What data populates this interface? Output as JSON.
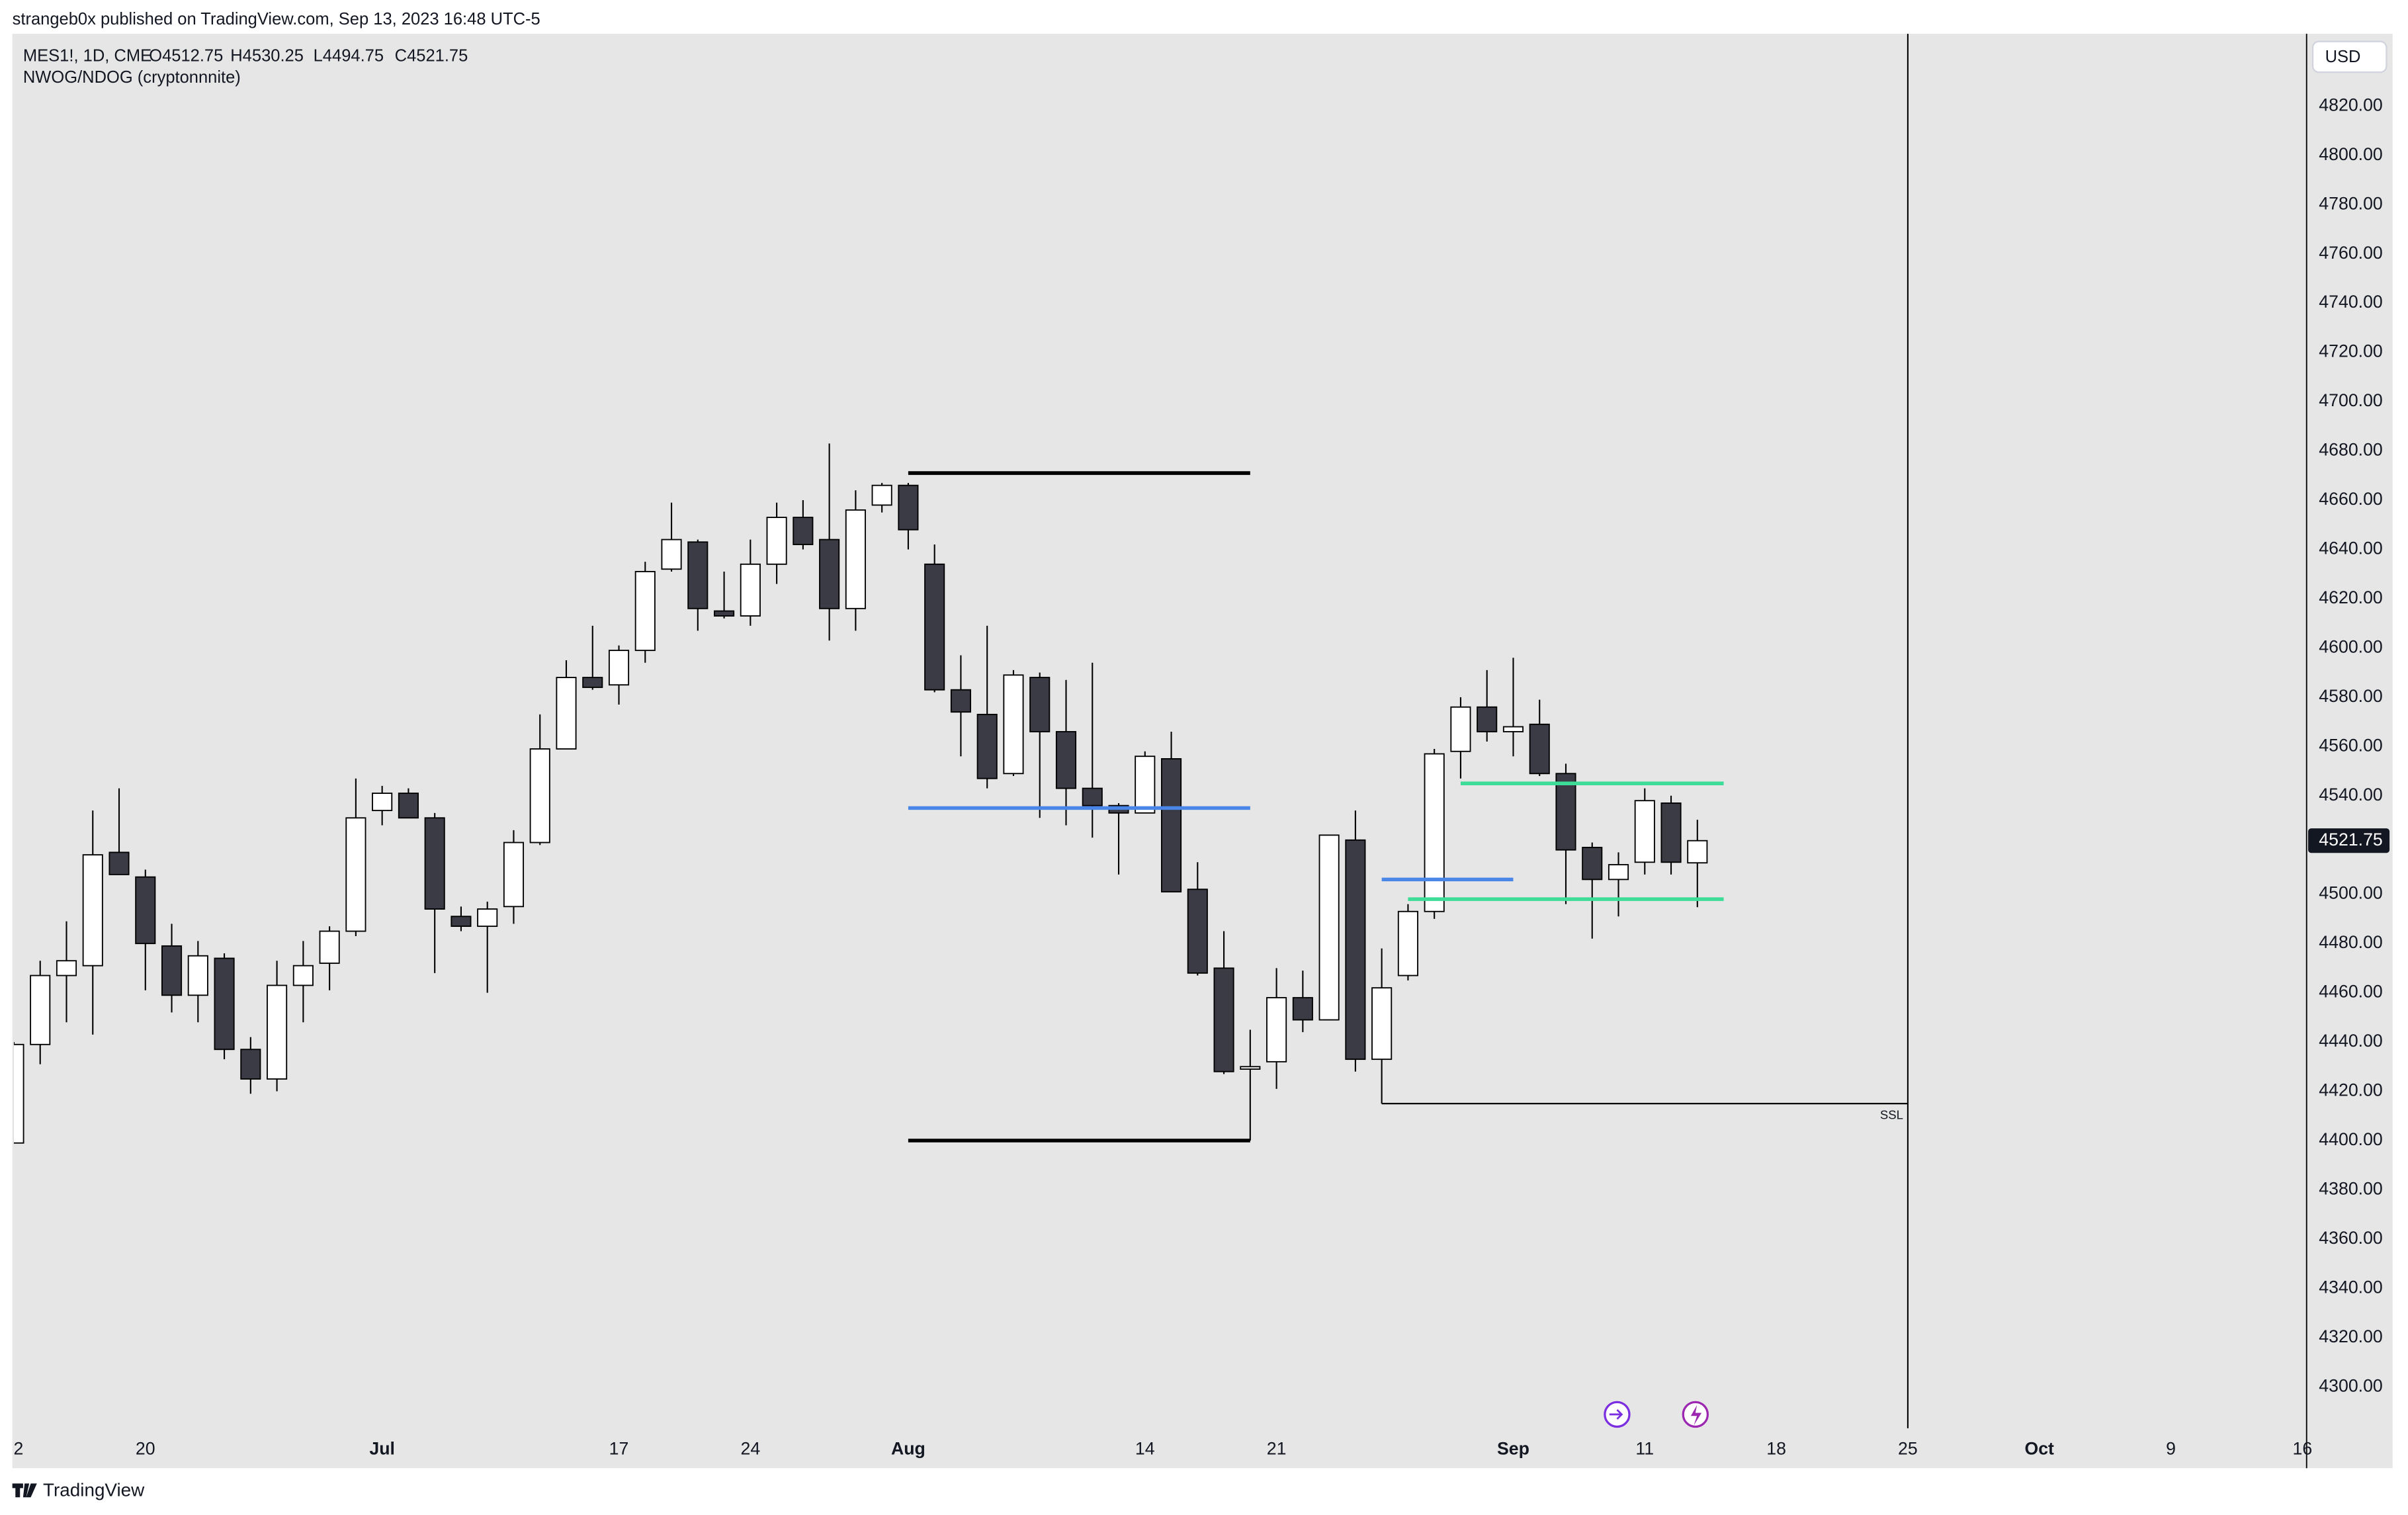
{
  "header": {
    "publisher": "strangeb0x published on TradingView.com, Sep 13, 2023 16:48 UTC-5",
    "symbol": "MES1!, 1D, CME",
    "ohlc": [
      "O4512.75",
      "H4530.25",
      "L4494.75",
      "C4521.75"
    ],
    "indicator": "NWOG/NDOG (cryptonnnite)",
    "currency": "USD"
  },
  "footer": {
    "brand": "TradingView"
  },
  "chart_data": {
    "type": "candlestick",
    "open": [
      4399,
      4439,
      4467,
      4471,
      4517,
      4507,
      4479,
      4459,
      4474,
      4437,
      4425,
      4463,
      4472,
      4485,
      4534,
      4541,
      4531,
      4491,
      4487,
      4495,
      4521,
      4559,
      4588,
      4585,
      4599,
      4632,
      4643,
      4615,
      4613,
      4634,
      4653,
      4644,
      4616,
      4658,
      4666,
      4634,
      4583,
      4573,
      4549,
      4588,
      4566,
      4543,
      4536,
      4533,
      4555,
      4502,
      4470,
      4429,
      4432,
      4458,
      4449,
      4522,
      4433,
      4467,
      4493,
      4558,
      4576,
      4566,
      4569,
      4549,
      4519,
      4506,
      4513,
      4537,
      4512.75
    ],
    "high": [
      4440,
      4473,
      4489,
      4534,
      4543,
      4510,
      4488,
      4481,
      4476,
      4442,
      4473,
      4481,
      4487,
      4547,
      4544,
      4543,
      4533,
      4495,
      4497,
      4526,
      4573,
      4595,
      4609,
      4601,
      4635,
      4659,
      4644,
      4631,
      4644,
      4659,
      4660,
      4683,
      4664,
      4667,
      4667,
      4642,
      4597,
      4609,
      4591,
      4590,
      4587,
      4594,
      4537,
      4558,
      4566,
      4513,
      4485,
      4445,
      4470,
      4469,
      4524,
      4534,
      4478,
      4496,
      4559,
      4580,
      4591,
      4596,
      4579,
      4553,
      4521,
      4517,
      4543,
      4540,
      4530.25
    ],
    "low": [
      4399,
      4431,
      4448,
      4443,
      4508,
      4461,
      4452,
      4448,
      4433,
      4419,
      4420,
      4448,
      4461,
      4483,
      4528,
      4531,
      4468,
      4485,
      4460,
      4488,
      4520,
      4559,
      4583,
      4577,
      4594,
      4631,
      4607,
      4612,
      4609,
      4626,
      4640,
      4603,
      4607,
      4655,
      4640,
      4582,
      4556,
      4543,
      4548,
      4531,
      4528,
      4523,
      4508,
      4533,
      4501,
      4467,
      4427,
      4400,
      4421,
      4444,
      4449,
      4428,
      4415,
      4465,
      4490,
      4547,
      4562,
      4556,
      4548,
      4496,
      4482,
      4491,
      4508,
      4508,
      4494.75
    ],
    "close": [
      4439,
      4467,
      4473,
      4516,
      4508,
      4480,
      4459,
      4475,
      4437,
      4425,
      4463,
      4471,
      4485,
      4531,
      4541,
      4531,
      4494,
      4487,
      4494,
      4521,
      4559,
      4588,
      4584,
      4599,
      4631,
      4644,
      4616,
      4613,
      4634,
      4653,
      4642,
      4616,
      4656,
      4666,
      4648,
      4583,
      4574,
      4547,
      4589,
      4566,
      4543,
      4536,
      4533,
      4556,
      4501,
      4468,
      4428,
      4430,
      4458,
      4449,
      4524,
      4433,
      4462,
      4493,
      4557,
      4576,
      4566,
      4568,
      4549,
      4518,
      4506,
      4512,
      4538,
      4513,
      4521.75
    ],
    "up_color": "#ffffff",
    "down_color": "#3b3b45",
    "xlim": [
      0,
      87.16
    ],
    "xticks": [
      {
        "value": 0,
        "label": "2"
      },
      {
        "value": 5,
        "label": "20"
      },
      {
        "value": 14,
        "label": "Jul"
      },
      {
        "value": 23,
        "label": "17"
      },
      {
        "value": 28,
        "label": "24"
      },
      {
        "value": 34,
        "label": "Aug"
      },
      {
        "value": 43,
        "label": "14"
      },
      {
        "value": 48,
        "label": "21"
      },
      {
        "value": 57,
        "label": "Sep"
      },
      {
        "value": 62,
        "label": "11"
      },
      {
        "value": 67,
        "label": "18"
      },
      {
        "value": 72,
        "label": "25"
      },
      {
        "value": 77,
        "label": "Oct"
      },
      {
        "value": 82,
        "label": "9"
      },
      {
        "value": 87,
        "label": "16"
      }
    ],
    "ylim": [
      4283.2,
      4848.1
    ],
    "yticks": [
      {
        "value": 4300,
        "label": "4300.00"
      },
      {
        "value": 4320,
        "label": "4320.00"
      },
      {
        "value": 4340,
        "label": "4340.00"
      },
      {
        "value": 4360,
        "label": "4360.00"
      },
      {
        "value": 4380,
        "label": "4380.00"
      },
      {
        "value": 4400,
        "label": "4400.00"
      },
      {
        "value": 4420,
        "label": "4420.00"
      },
      {
        "value": 4440,
        "label": "4440.00"
      },
      {
        "value": 4460,
        "label": "4460.00"
      },
      {
        "value": 4480,
        "label": "4480.00"
      },
      {
        "value": 4500,
        "label": "4500.00"
      },
      {
        "value": 4520,
        "label": "4520.00"
      },
      {
        "value": 4540,
        "label": "4540.00"
      },
      {
        "value": 4560,
        "label": "4560.00"
      },
      {
        "value": 4580,
        "label": "4580.00"
      },
      {
        "value": 4600,
        "label": "4600.00"
      },
      {
        "value": 4620,
        "label": "4620.00"
      },
      {
        "value": 4640,
        "label": "4640.00"
      },
      {
        "value": 4660,
        "label": "4660.00"
      },
      {
        "value": 4680,
        "label": "4680.00"
      },
      {
        "value": 4700,
        "label": "4700.00"
      },
      {
        "value": 4720,
        "label": "4720.00"
      },
      {
        "value": 4740,
        "label": "4740.00"
      },
      {
        "value": 4760,
        "label": "4760.00"
      },
      {
        "value": 4780,
        "label": "4780.00"
      },
      {
        "value": 4800,
        "label": "4800.00"
      },
      {
        "value": 4820,
        "label": "4820.00"
      }
    ],
    "last_price": {
      "value": 4521.75,
      "label": "4521.75"
    },
    "levels": [
      {
        "value": 4671,
        "from": 34,
        "to": 47,
        "color": "#000000"
      },
      {
        "value": 4400,
        "from": 34,
        "to": 47,
        "color": "#000000"
      },
      {
        "value": 4535,
        "from": 34,
        "to": 47,
        "color": "#4a86e8"
      },
      {
        "value": 4506,
        "from": 52,
        "to": 57,
        "color": "#4a86e8"
      },
      {
        "value": 4545,
        "from": 55,
        "to": 65,
        "color": "#3ddc97"
      },
      {
        "value": 4498,
        "from": 53,
        "to": 65,
        "color": "#3ddc97"
      },
      {
        "value": 4415,
        "from": 52,
        "to": 72,
        "color": "#000000",
        "label": "SSL"
      }
    ],
    "vline": 72
  }
}
